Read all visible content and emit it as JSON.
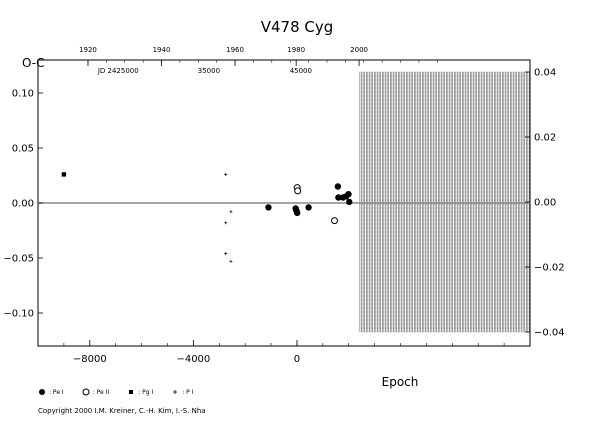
{
  "chart_data": {
    "type": "scatter",
    "title": "V478  Cyg",
    "ylabel": "O-C",
    "xlabel": "Epoch",
    "xlim": [
      -10000,
      9000
    ],
    "ylim": [
      -0.13,
      0.13
    ],
    "right_ylim": [
      -0.04,
      0.04
    ],
    "x_ticks": [
      -8000,
      -4000,
      0
    ],
    "y_ticks": [
      0.1,
      0.05,
      0.0,
      -0.05,
      -0.1
    ],
    "y_tick_labels": [
      "0.10",
      "0.05",
      "0.00",
      "−0.05",
      "−0.10"
    ],
    "right_y_ticks": [
      0.04,
      0.02,
      0.0,
      -0.02,
      -0.04
    ],
    "right_y_tick_labels": [
      "0.04",
      "0.02",
      "0.00",
      "−0.02",
      "−0.04"
    ],
    "top_year_ticks": [
      {
        "label": "1920",
        "epoch": -8070
      },
      {
        "label": "1940",
        "epoch": -5230
      },
      {
        "label": "1960",
        "epoch": -2390
      },
      {
        "label": "1980",
        "epoch": -30
      },
      {
        "label": "2000",
        "epoch": 2400
      }
    ],
    "jd_labels": [
      {
        "label": "JD  2425000",
        "epoch": -6900
      },
      {
        "label": "35000",
        "epoch": -3400
      },
      {
        "label": "45000",
        "epoch": 150
      }
    ],
    "hatched_region_epoch_start": 2430,
    "zero_line": true,
    "series": [
      {
        "name": "Pe I",
        "marker": "filled-circle",
        "points": [
          [
            -1100,
            -0.004
          ],
          [
            -50,
            -0.005
          ],
          [
            -20,
            -0.007
          ],
          [
            10,
            -0.009
          ],
          [
            450,
            -0.004
          ],
          [
            1580,
            0.015
          ],
          [
            1600,
            0.005
          ],
          [
            1780,
            0.005
          ],
          [
            1900,
            0.006
          ],
          [
            1990,
            0.008
          ],
          [
            2020,
            0.001
          ]
        ]
      },
      {
        "name": "Pe II",
        "marker": "open-circle",
        "points": [
          [
            10,
            0.014
          ],
          [
            30,
            0.011
          ],
          [
            1450,
            -0.016
          ]
        ]
      },
      {
        "name": "Pg I",
        "marker": "filled-square",
        "points": [
          [
            -9000,
            0.026
          ]
        ]
      },
      {
        "name": "P I",
        "marker": "plus",
        "points": [
          [
            -2750,
            0.026
          ],
          [
            -2750,
            -0.018
          ],
          [
            -2550,
            -0.008
          ],
          [
            -2750,
            -0.046
          ],
          [
            -2550,
            -0.053
          ]
        ]
      }
    ]
  },
  "legend": [
    {
      "label": ": Pe I",
      "marker": "filled-circle"
    },
    {
      "label": ": Pe II",
      "marker": "open-circle"
    },
    {
      "label": ": Pg I",
      "marker": "filled-square"
    },
    {
      "label": ": P I",
      "marker": "plus"
    }
  ],
  "copyright": "Copyright 2000 I.M. Kreiner, C.-H. Kim, I.-S. Nha"
}
